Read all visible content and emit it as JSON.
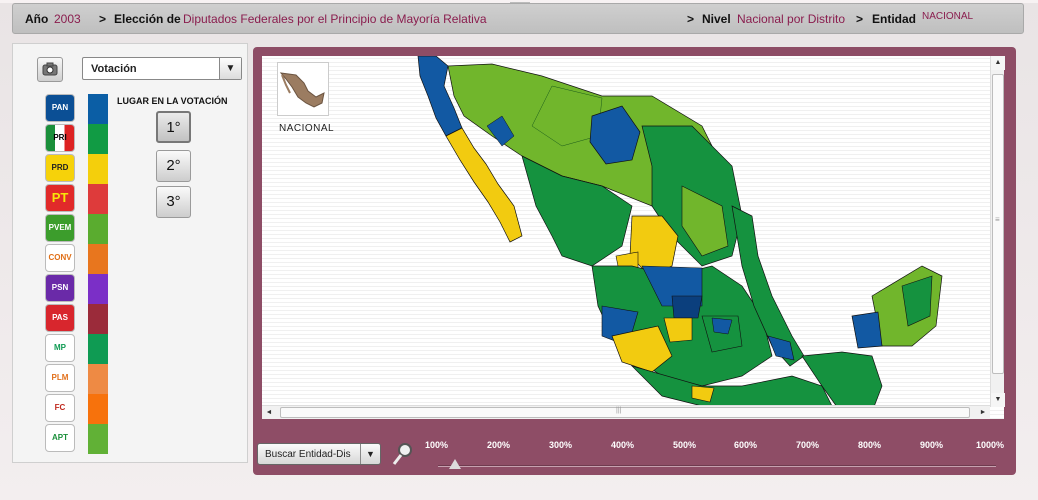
{
  "breadcrumb": {
    "year_label": "Año",
    "year_value": "2003",
    "sep1": ">",
    "election_label": "Elección de",
    "election_value": "Diputados Federales por el Principio de Mayoría Relativa",
    "sep2": ">",
    "level_label": "Nivel",
    "level_value": "Nacional por Distrito",
    "sep3": ">",
    "entity_label": "Entidad",
    "entity_value": "NACIONAL"
  },
  "left_panel": {
    "view_select": {
      "value": "Votación",
      "arrow": "▼"
    },
    "camera_icon": "camera-icon",
    "lugar_title": "LUGAR EN LA VOTACIÓN",
    "rank_buttons": [
      "1°",
      "2°",
      "3°"
    ],
    "parties": [
      {
        "name": "PAN",
        "color": "#0b5ea5"
      },
      {
        "name": "PRI",
        "color": "#119b44"
      },
      {
        "name": "PRD",
        "color": "#f4cf0c"
      },
      {
        "name": "PT",
        "color": "#de3b3b"
      },
      {
        "name": "PVEM",
        "color": "#5aac2f"
      },
      {
        "name": "CONV",
        "color": "#e8761e"
      },
      {
        "name": "PSN",
        "color": "#7b2fc7"
      },
      {
        "name": "PAS",
        "color": "#9b2b3a"
      },
      {
        "name": "MP",
        "color": "#0f9b53"
      },
      {
        "name": "PLM",
        "color": "#ee8a44"
      },
      {
        "name": "FC",
        "color": "#f7720c"
      },
      {
        "name": "APT",
        "color": "#61b136"
      }
    ]
  },
  "map": {
    "mini_label": "NACIONAL",
    "colors": {
      "pan": "#1259a3",
      "pri": "#15923f",
      "prd": "#f2cb10",
      "pvem": "#71b62c"
    },
    "frame_color": "#8e4d66"
  },
  "bottom": {
    "search_value": "Buscar Entidad-Dis",
    "search_arrow": "▼",
    "magnifier_icon": "magnifier-icon",
    "zoom_levels": [
      "100%",
      "200%",
      "300%",
      "400%",
      "500%",
      "600%",
      "700%",
      "800%",
      "900%",
      "1000%"
    ],
    "zoom_current_percent": 100
  },
  "scrollbar": {
    "up": "▲",
    "down": "▼",
    "left": "◄",
    "right": "►",
    "grip_v": "≡",
    "grip_h": "|||"
  }
}
